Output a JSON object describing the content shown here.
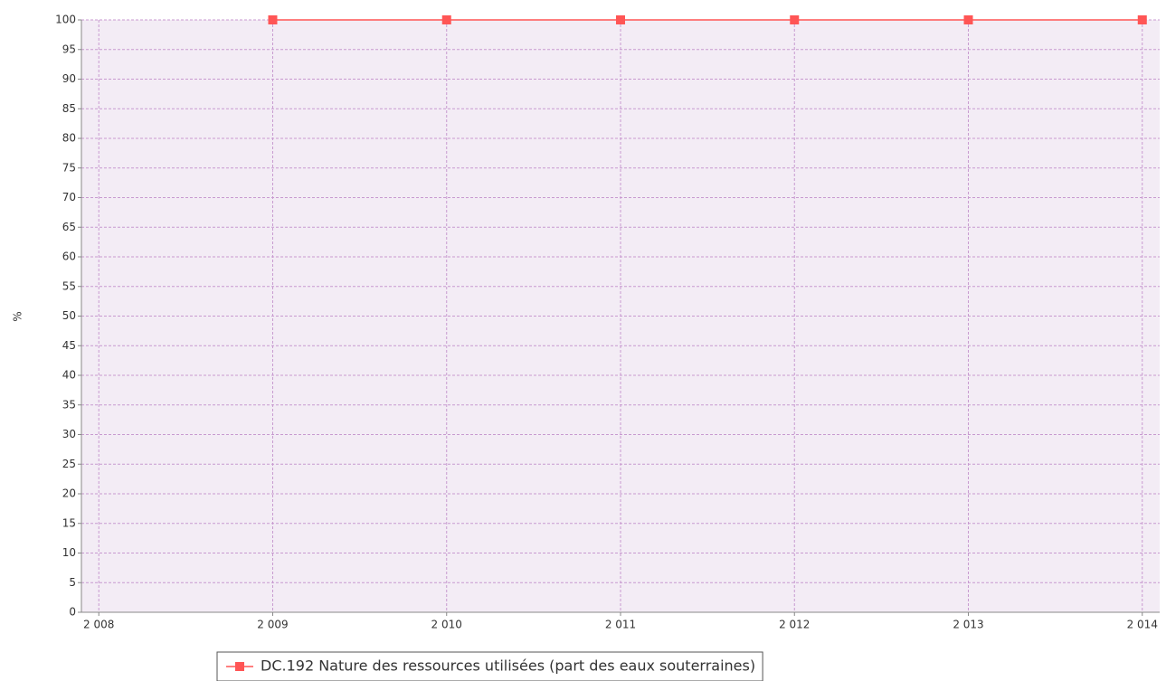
{
  "chart_data": {
    "type": "line",
    "ylabel": "%",
    "x": [
      2009,
      2010,
      2011,
      2012,
      2013,
      2014
    ],
    "series": [
      {
        "name": "DC.192 Nature des ressources utilisées (part des eaux souterraines)",
        "color": "#ff5555",
        "values": [
          100,
          100,
          100,
          100,
          100,
          100
        ]
      }
    ],
    "xlim": [
      2007.9,
      2014.1
    ],
    "xticks": [
      {
        "value": 2008,
        "label": "2 008"
      },
      {
        "value": 2009,
        "label": "2 009"
      },
      {
        "value": 2010,
        "label": "2 010"
      },
      {
        "value": 2011,
        "label": "2 011"
      },
      {
        "value": 2012,
        "label": "2 012"
      },
      {
        "value": 2013,
        "label": "2 013"
      },
      {
        "value": 2014,
        "label": "2 014"
      }
    ],
    "ylim": [
      0,
      100
    ],
    "yticks": [
      0,
      5,
      10,
      15,
      20,
      25,
      30,
      35,
      40,
      45,
      50,
      55,
      60,
      65,
      70,
      75,
      80,
      85,
      90,
      95,
      100
    ],
    "grid": true,
    "legend": "bottom"
  }
}
